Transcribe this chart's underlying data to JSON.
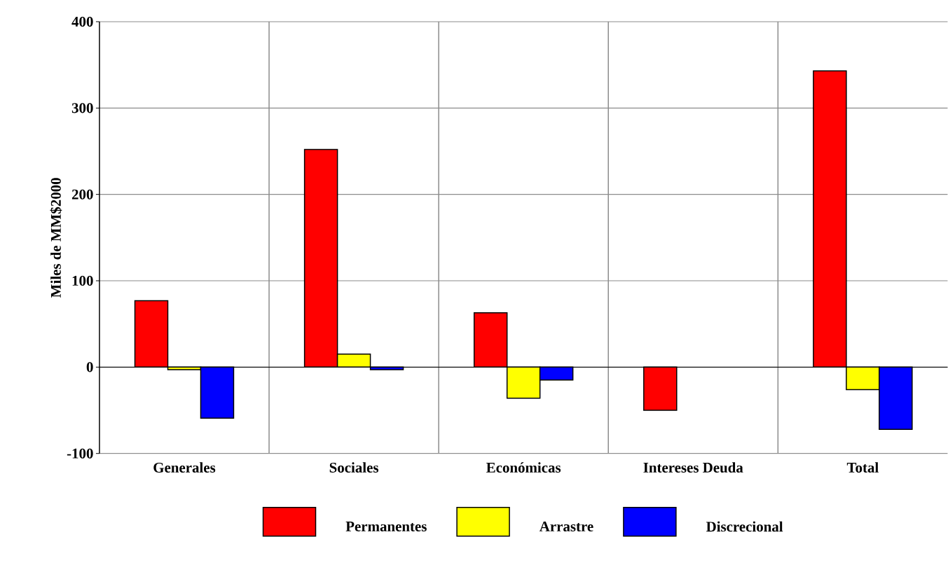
{
  "chart_data": {
    "type": "bar",
    "ylabel": "Miles de MM$2000",
    "categories": [
      "Generales",
      "Sociales",
      "Económicas",
      "Intereses Deuda",
      "Total"
    ],
    "series": [
      {
        "name": "Permanentes",
        "color": "#ff0000",
        "values": [
          77,
          252,
          63,
          -50,
          343
        ]
      },
      {
        "name": "Arrastre",
        "color": "#ffff00",
        "values": [
          -3,
          15,
          -36,
          null,
          -26
        ]
      },
      {
        "name": "Discrecional",
        "color": "#0000ff",
        "values": [
          -59,
          -3,
          -15,
          null,
          -72
        ]
      }
    ],
    "ylim": [
      -100,
      400
    ],
    "yticks": [
      -100,
      0,
      100,
      200,
      300,
      400
    ],
    "grid": true,
    "legend": "bottom"
  }
}
